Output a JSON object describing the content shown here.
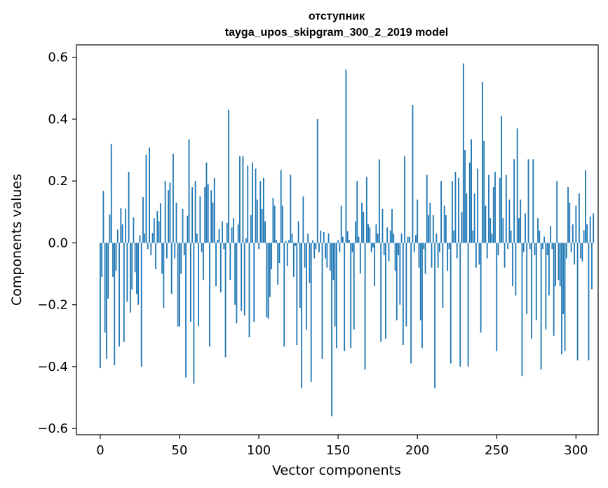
{
  "chart_data": {
    "type": "bar",
    "title_line1": "отступник",
    "title_line2": "tayga_upos_skipgram_300_2_2019 model",
    "xlabel": "Vector components",
    "ylabel": "Components values",
    "xlim": [
      -15,
      314
    ],
    "ylim": [
      -0.62,
      0.64
    ],
    "xticks": [
      0,
      50,
      100,
      150,
      200,
      250,
      300
    ],
    "xtick_labels": [
      "0",
      "50",
      "100",
      "150",
      "200",
      "250",
      "300"
    ],
    "yticks": [
      -0.6,
      -0.4,
      -0.2,
      0.0,
      0.2,
      0.4,
      0.6
    ],
    "ytick_labels": [
      "−0.6",
      "−0.4",
      "−0.2",
      "0.0",
      "0.2",
      "0.4",
      "0.6"
    ],
    "bar_color": "#1f77b4",
    "grid": false,
    "values": [
      -0.405,
      -0.11,
      0.168,
      -0.29,
      -0.375,
      -0.18,
      0.092,
      0.32,
      -0.11,
      -0.395,
      -0.09,
      0.043,
      -0.335,
      0.112,
      0.06,
      -0.32,
      0.11,
      -0.19,
      0.23,
      -0.225,
      -0.15,
      0.082,
      -0.095,
      -0.165,
      -0.2,
      0.025,
      -0.4,
      0.148,
      0.03,
      0.285,
      -0.02,
      0.308,
      -0.04,
      0.032,
      0.08,
      -0.085,
      0.103,
      0.07,
      0.128,
      -0.1,
      -0.21,
      0.2,
      -0.05,
      0.17,
      0.195,
      -0.165,
      0.288,
      -0.05,
      0.13,
      -0.27,
      -0.27,
      -0.1,
      0.11,
      -0.04,
      -0.435,
      0.088,
      0.335,
      -0.255,
      0.18,
      -0.455,
      0.2,
      0.03,
      -0.27,
      0.15,
      -0.03,
      -0.12,
      0.18,
      0.26,
      0.19,
      -0.335,
      0.17,
      0.13,
      0.21,
      -0.14,
      0.01,
      0.045,
      -0.16,
      0.07,
      -0.02,
      -0.37,
      0.065,
      0.43,
      -0.12,
      0.05,
      0.08,
      -0.2,
      -0.26,
      0.06,
      0.28,
      -0.22,
      0.28,
      -0.235,
      0.015,
      0.25,
      -0.305,
      0.09,
      0.26,
      -0.255,
      0.24,
      0.14,
      -0.02,
      0.2,
      0.11,
      0.21,
      0.07,
      -0.24,
      -0.245,
      -0.175,
      -0.085,
      0.145,
      0.12,
      0.01,
      -0.135,
      -0.065,
      0.235,
      0.12,
      -0.335,
      0.006,
      -0.075,
      0.009,
      0.22,
      0.03,
      -0.11,
      -0.01,
      -0.33,
      0.07,
      -0.21,
      -0.47,
      0.15,
      -0.08,
      -0.28,
      0.03,
      -0.13,
      -0.45,
      0.008,
      -0.05,
      -0.02,
      0.4,
      -0.03,
      0.04,
      -0.375,
      0.035,
      -0.05,
      -0.08,
      0.03,
      -0.09,
      -0.56,
      -0.12,
      -0.27,
      -0.34,
      0.009,
      -0.03,
      0.12,
      0.02,
      -0.35,
      0.56,
      0.038,
      0.01,
      -0.34,
      -0.03,
      -0.28,
      0.07,
      0.2,
      0.02,
      -0.1,
      0.13,
      0.1,
      -0.41,
      0.213,
      0.06,
      0.05,
      -0.03,
      -0.015,
      -0.14,
      0.06,
      0.03,
      0.27,
      -0.32,
      0.11,
      -0.04,
      -0.31,
      0.05,
      -0.06,
      0.04,
      0.11,
      0.03,
      -0.09,
      -0.25,
      -0.04,
      -0.2,
      0.03,
      -0.33,
      0.28,
      -0.27,
      0.02,
      0.02,
      -0.39,
      0.445,
      -0.03,
      0.025,
      0.14,
      -0.08,
      -0.25,
      -0.34,
      -0.02,
      -0.1,
      0.22,
      0.09,
      0.13,
      -0.08,
      0.09,
      -0.47,
      0.03,
      -0.08,
      -0.03,
      0.2,
      -0.21,
      0.12,
      0.09,
      -0.09,
      -0.02,
      -0.39,
      0.2,
      0.04,
      0.23,
      -0.05,
      0.21,
      -0.4,
      0.1,
      0.58,
      0.3,
      0.16,
      -0.4,
      0.26,
      0.335,
      0.04,
      0.16,
      -0.08,
      0.24,
      -0.07,
      -0.29,
      0.52,
      0.33,
      0.12,
      -0.05,
      0.22,
      0.08,
      0.03,
      0.18,
      0.23,
      -0.35,
      -0.04,
      0.21,
      0.41,
      0.08,
      -0.08,
      0.22,
      -0.02,
      0.14,
      0.04,
      -0.14,
      0.27,
      -0.17,
      0.37,
      0.08,
      0.14,
      -0.43,
      -0.03,
      0.095,
      -0.23,
      0.27,
      -0.02,
      -0.31,
      0.27,
      -0.04,
      -0.25,
      0.08,
      0.04,
      -0.41,
      -0.02,
      0.02,
      -0.28,
      -0.04,
      -0.17,
      0.055,
      -0.02,
      -0.3,
      -0.14,
      0.2,
      -0.12,
      -0.14,
      -0.36,
      -0.23,
      -0.35,
      -0.05,
      0.18,
      0.13,
      -0.03,
      0.06,
      -0.07,
      0.12,
      -0.38,
      0.16,
      -0.05,
      -0.06,
      0.041,
      0.235,
      0.06,
      -0.38,
      0.085,
      -0.15,
      0.095
    ]
  }
}
